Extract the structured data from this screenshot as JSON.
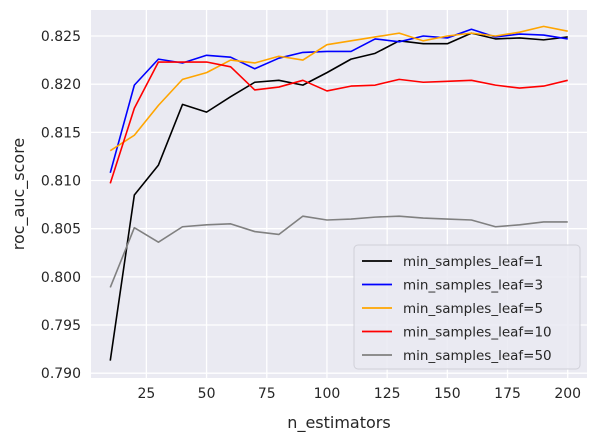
{
  "chart_data": {
    "type": "line",
    "title": "",
    "xlabel": "n_estimators",
    "ylabel": "roc_auc_score",
    "xlim": [
      2,
      208
    ],
    "ylim": [
      0.7895,
      0.8277
    ],
    "xticks": [
      25,
      50,
      75,
      100,
      125,
      150,
      175,
      200
    ],
    "yticks": [
      0.79,
      0.795,
      0.8,
      0.805,
      0.81,
      0.815,
      0.82,
      0.825
    ],
    "grid": true,
    "legend_position": "lower-right",
    "x": [
      10,
      20,
      30,
      40,
      50,
      60,
      70,
      80,
      90,
      100,
      110,
      120,
      130,
      140,
      150,
      160,
      170,
      180,
      190,
      200
    ],
    "series": [
      {
        "name": "min_samples_leaf=1",
        "color": "#000000",
        "values": [
          0.7913,
          0.8085,
          0.8116,
          0.8179,
          0.8171,
          0.8187,
          0.8202,
          0.8204,
          0.8199,
          0.8212,
          0.8226,
          0.8232,
          0.8245,
          0.8242,
          0.8242,
          0.8253,
          0.8247,
          0.8248,
          0.8246,
          0.8249
        ]
      },
      {
        "name": "min_samples_leaf=3",
        "color": "#0000ff",
        "values": [
          0.8108,
          0.8199,
          0.8226,
          0.8222,
          0.823,
          0.8228,
          0.8216,
          0.8227,
          0.8233,
          0.8234,
          0.8234,
          0.8247,
          0.8244,
          0.825,
          0.8248,
          0.8257,
          0.8249,
          0.8252,
          0.8251,
          0.8247
        ]
      },
      {
        "name": "min_samples_leaf=5",
        "color": "#ffa500",
        "values": [
          0.8131,
          0.8147,
          0.8178,
          0.8205,
          0.8212,
          0.8225,
          0.8222,
          0.8229,
          0.8225,
          0.8241,
          0.8245,
          0.8249,
          0.8253,
          0.8245,
          0.825,
          0.8253,
          0.825,
          0.8254,
          0.826,
          0.8255
        ]
      },
      {
        "name": "min_samples_leaf=10",
        "color": "#ff0000",
        "values": [
          0.8097,
          0.8175,
          0.8223,
          0.8223,
          0.8223,
          0.8218,
          0.8194,
          0.8197,
          0.8204,
          0.8193,
          0.8198,
          0.8199,
          0.8205,
          0.8202,
          0.8203,
          0.8204,
          0.8199,
          0.8196,
          0.8198,
          0.8204
        ]
      },
      {
        "name": "min_samples_leaf=50",
        "color": "#808080",
        "values": [
          0.7989,
          0.8051,
          0.8036,
          0.8052,
          0.8054,
          0.8055,
          0.8047,
          0.8044,
          0.8063,
          0.8059,
          0.806,
          0.8062,
          0.8063,
          0.8061,
          0.806,
          0.8059,
          0.8052,
          0.8054,
          0.8057,
          0.8057
        ]
      }
    ]
  }
}
